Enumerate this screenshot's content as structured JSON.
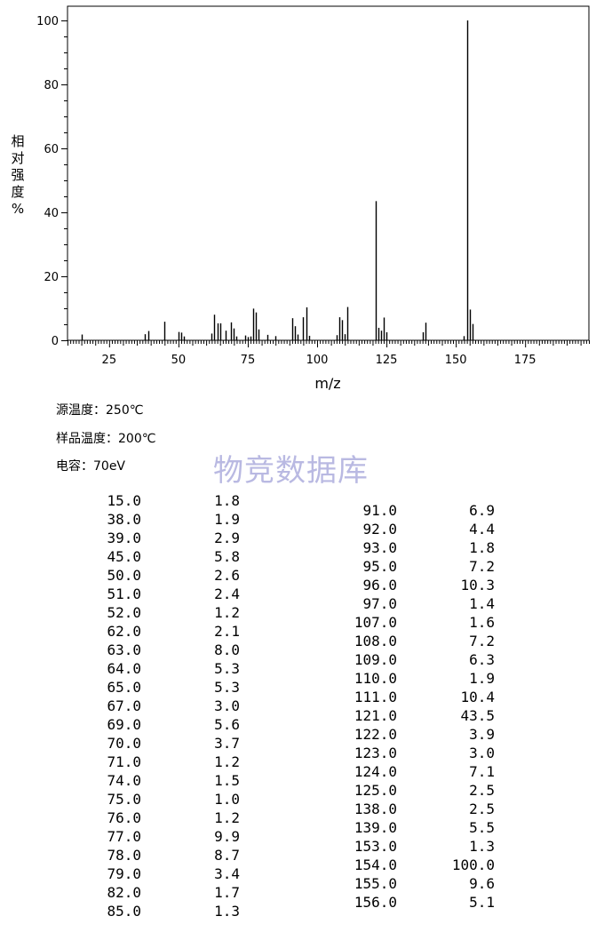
{
  "chart_data": {
    "type": "bar",
    "xlabel": "m/z",
    "ylabel_chars": [
      "相",
      "对",
      "强",
      "度",
      "%"
    ],
    "xlim": [
      10,
      198
    ],
    "ylim": [
      0,
      100
    ],
    "xticks": [
      25,
      50,
      75,
      100,
      125,
      150,
      175
    ],
    "yticks": [
      0,
      20,
      40,
      60,
      80,
      100
    ],
    "grid": false,
    "points": [
      {
        "x": 15,
        "y": 1.8
      },
      {
        "x": 38,
        "y": 1.9
      },
      {
        "x": 39,
        "y": 2.9
      },
      {
        "x": 45,
        "y": 5.8
      },
      {
        "x": 50,
        "y": 2.6
      },
      {
        "x": 51,
        "y": 2.4
      },
      {
        "x": 52,
        "y": 1.2
      },
      {
        "x": 62,
        "y": 2.1
      },
      {
        "x": 63,
        "y": 8.0
      },
      {
        "x": 64,
        "y": 5.3
      },
      {
        "x": 65,
        "y": 5.3
      },
      {
        "x": 67,
        "y": 3.0
      },
      {
        "x": 69,
        "y": 5.6
      },
      {
        "x": 70,
        "y": 3.7
      },
      {
        "x": 71,
        "y": 1.2
      },
      {
        "x": 74,
        "y": 1.5
      },
      {
        "x": 75,
        "y": 1.0
      },
      {
        "x": 76,
        "y": 1.2
      },
      {
        "x": 77,
        "y": 9.9
      },
      {
        "x": 78,
        "y": 8.7
      },
      {
        "x": 79,
        "y": 3.4
      },
      {
        "x": 82,
        "y": 1.7
      },
      {
        "x": 85,
        "y": 1.3
      },
      {
        "x": 91,
        "y": 6.9
      },
      {
        "x": 92,
        "y": 4.4
      },
      {
        "x": 93,
        "y": 1.8
      },
      {
        "x": 95,
        "y": 7.2
      },
      {
        "x": 96,
        "y": 10.3
      },
      {
        "x": 97,
        "y": 1.4
      },
      {
        "x": 107,
        "y": 1.6
      },
      {
        "x": 108,
        "y": 7.2
      },
      {
        "x": 109,
        "y": 6.3
      },
      {
        "x": 110,
        "y": 1.9
      },
      {
        "x": 111,
        "y": 10.4
      },
      {
        "x": 121,
        "y": 43.5
      },
      {
        "x": 122,
        "y": 3.9
      },
      {
        "x": 123,
        "y": 3.0
      },
      {
        "x": 124,
        "y": 7.1
      },
      {
        "x": 125,
        "y": 2.5
      },
      {
        "x": 138,
        "y": 2.5
      },
      {
        "x": 139,
        "y": 5.5
      },
      {
        "x": 153,
        "y": 1.3
      },
      {
        "x": 154,
        "y": 100.0
      },
      {
        "x": 155,
        "y": 9.6
      },
      {
        "x": 156,
        "y": 5.1
      }
    ]
  },
  "conditions": {
    "source_temp": "源温度：250℃",
    "sample_temp": "样品温度：200℃",
    "energy": "电容：70eV"
  },
  "watermark": "物竞数据库",
  "table_left": [
    {
      "mz": "15.0",
      "abundance": "1.8"
    },
    {
      "mz": "38.0",
      "abundance": "1.9"
    },
    {
      "mz": "39.0",
      "abundance": "2.9"
    },
    {
      "mz": "45.0",
      "abundance": "5.8"
    },
    {
      "mz": "50.0",
      "abundance": "2.6"
    },
    {
      "mz": "51.0",
      "abundance": "2.4"
    },
    {
      "mz": "52.0",
      "abundance": "1.2"
    },
    {
      "mz": "62.0",
      "abundance": "2.1"
    },
    {
      "mz": "63.0",
      "abundance": "8.0"
    },
    {
      "mz": "64.0",
      "abundance": "5.3"
    },
    {
      "mz": "65.0",
      "abundance": "5.3"
    },
    {
      "mz": "67.0",
      "abundance": "3.0"
    },
    {
      "mz": "69.0",
      "abundance": "5.6"
    },
    {
      "mz": "70.0",
      "abundance": "3.7"
    },
    {
      "mz": "71.0",
      "abundance": "1.2"
    },
    {
      "mz": "74.0",
      "abundance": "1.5"
    },
    {
      "mz": "75.0",
      "abundance": "1.0"
    },
    {
      "mz": "76.0",
      "abundance": "1.2"
    },
    {
      "mz": "77.0",
      "abundance": "9.9"
    },
    {
      "mz": "78.0",
      "abundance": "8.7"
    },
    {
      "mz": "79.0",
      "abundance": "3.4"
    },
    {
      "mz": "82.0",
      "abundance": "1.7"
    },
    {
      "mz": "85.0",
      "abundance": "1.3"
    }
  ],
  "table_right": [
    {
      "mz": "91.0",
      "abundance": "6.9"
    },
    {
      "mz": "92.0",
      "abundance": "4.4"
    },
    {
      "mz": "93.0",
      "abundance": "1.8"
    },
    {
      "mz": "95.0",
      "abundance": "7.2"
    },
    {
      "mz": "96.0",
      "abundance": "10.3"
    },
    {
      "mz": "97.0",
      "abundance": "1.4"
    },
    {
      "mz": "107.0",
      "abundance": "1.6"
    },
    {
      "mz": "108.0",
      "abundance": "7.2"
    },
    {
      "mz": "109.0",
      "abundance": "6.3"
    },
    {
      "mz": "110.0",
      "abundance": "1.9"
    },
    {
      "mz": "111.0",
      "abundance": "10.4"
    },
    {
      "mz": "121.0",
      "abundance": "43.5"
    },
    {
      "mz": "122.0",
      "abundance": "3.9"
    },
    {
      "mz": "123.0",
      "abundance": "3.0"
    },
    {
      "mz": "124.0",
      "abundance": "7.1"
    },
    {
      "mz": "125.0",
      "abundance": "2.5"
    },
    {
      "mz": "138.0",
      "abundance": "2.5"
    },
    {
      "mz": "139.0",
      "abundance": "5.5"
    },
    {
      "mz": "153.0",
      "abundance": "1.3"
    },
    {
      "mz": "154.0",
      "abundance": "100.0"
    },
    {
      "mz": "155.0",
      "abundance": "9.6"
    },
    {
      "mz": "156.0",
      "abundance": "5.1"
    }
  ]
}
